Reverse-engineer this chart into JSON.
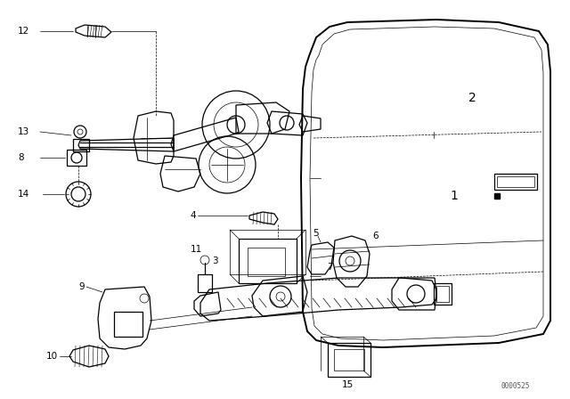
{
  "background_color": "#ffffff",
  "line_color": "#000000",
  "fig_width": 6.4,
  "fig_height": 4.48,
  "dpi": 100,
  "watermark": "0000525",
  "lw_main": 0.9,
  "lw_thin": 0.5,
  "lw_thick": 1.4,
  "label_fontsize": 7.5
}
